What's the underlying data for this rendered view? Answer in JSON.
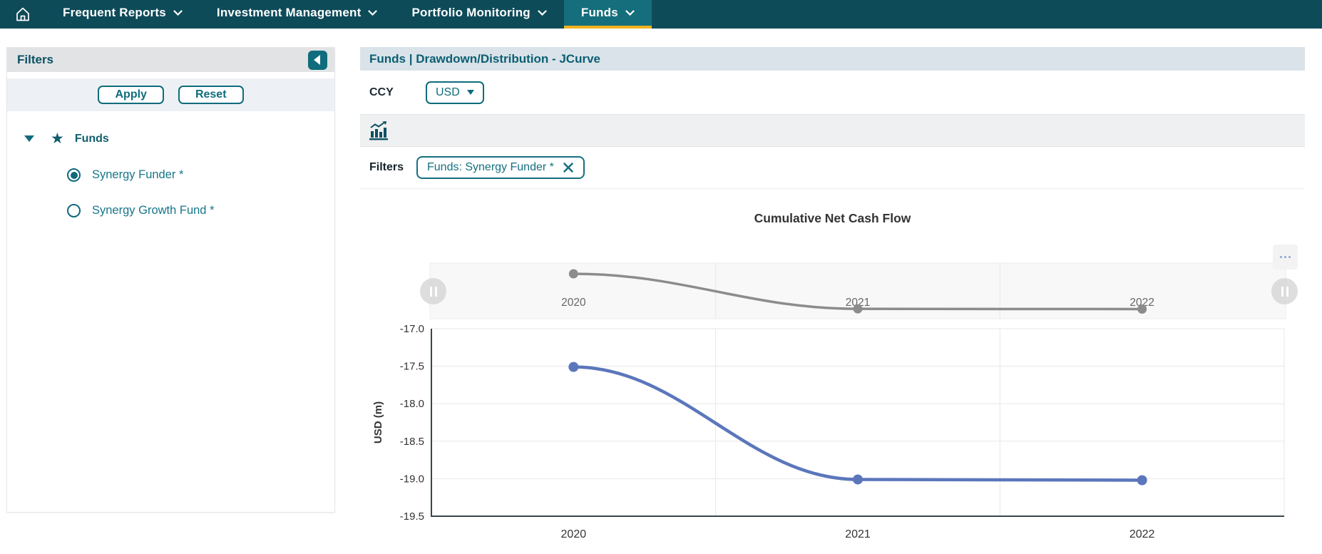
{
  "nav": {
    "items": [
      {
        "label": "Frequent Reports",
        "active": false
      },
      {
        "label": "Investment Management",
        "active": false
      },
      {
        "label": "Portfolio Monitoring",
        "active": false
      },
      {
        "label": "Funds",
        "active": true
      }
    ]
  },
  "sidebar": {
    "title": "Filters",
    "apply_label": "Apply",
    "reset_label": "Reset",
    "tree": {
      "root_label": "Funds",
      "options": [
        {
          "label": "Synergy Funder *",
          "selected": true
        },
        {
          "label": "Synergy Growth Fund *",
          "selected": false
        }
      ]
    }
  },
  "main": {
    "breadcrumb": "Funds | Drawdown/Distribution - JCurve",
    "ccy_label": "CCY",
    "ccy_value": "USD",
    "filters_label": "Filters",
    "filter_chip": "Funds: Synergy Funder *"
  },
  "chart_data": {
    "type": "line",
    "title": "Cumulative Net Cash Flow",
    "xlabel": "",
    "ylabel": "USD (m)",
    "categories": [
      "2020",
      "2021",
      "2022"
    ],
    "series": [
      {
        "name": "Cumulative Net Cash Flow",
        "values": [
          -17.51,
          -19.01,
          -19.02
        ]
      }
    ],
    "ylim": [
      -19.5,
      -17.0
    ],
    "yticks": [
      -17.0,
      -17.5,
      -18.0,
      -18.5,
      -19.0,
      -19.5
    ],
    "grid": true,
    "legend": false,
    "navigator": true
  },
  "colors": {
    "nav_bg": "#0e4b59",
    "active_tab_bg": "#156e7c",
    "active_tab_underline": "#f0b11e",
    "accent_teal": "#0f6c7c",
    "line_blue": "#5b76bb",
    "navigator_gray": "#8c8c8c",
    "gridline": "#e7e7e7",
    "axis_dark": "#37474f"
  },
  "icons": {
    "home": "home-icon",
    "nav_chevron": "chevron-down-icon",
    "collapse": "collapse-left-icon",
    "tree_caret": "caret-down-icon",
    "favorite": "star-icon",
    "chart_view": "bar-chart-trend-icon",
    "ccy_caret": "dropdown-caret-icon",
    "chip_close": "close-icon",
    "navigator_handle": "pause-handle-icon",
    "context_menu": "ellipsis-icon"
  }
}
